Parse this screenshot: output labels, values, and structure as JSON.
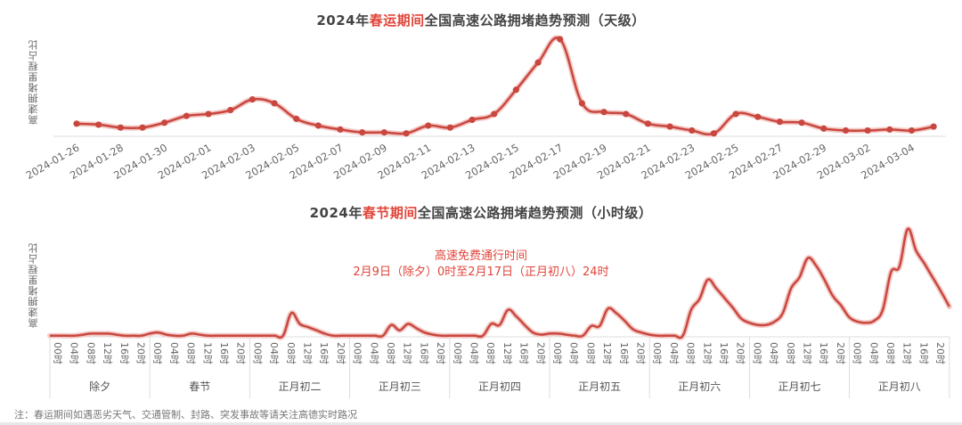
{
  "top_chart": {
    "title_prefix": "2024年",
    "title_highlight": "春运期间",
    "title_suffix": "全国高速公路拥堵趋势预测（天级）",
    "ylabel": "高速拥堵里程占比"
  },
  "bottom_chart": {
    "title_prefix": "2024年",
    "title_highlight": "春节期间",
    "title_suffix": "全国高速公路拥堵趋势预测（小时级）",
    "ylabel": "高速拥堵里程占比",
    "annotation_line1": "高速免费通行时间",
    "annotation_line2": "2月9日（除夕）0时至2月17日（正月初八）24时"
  },
  "footnote": "注：春运期间如遇恶劣天气、交通管制、封路、突发事故等请关注高德实时路况",
  "colors": {
    "line": "#c9473f",
    "highlight": "#e0453a",
    "axis": "#dddddd"
  },
  "chart_data": [
    {
      "type": "line",
      "title": "2024年春运期间全国高速公路拥堵趋势预测（天级）",
      "xlabel": "",
      "ylabel": "高速拥堵里程占比",
      "y_units": "relative index (0-100, peak=100; no y ticks shown)",
      "grid": false,
      "markers": true,
      "x": [
        "2024-01-26",
        "2024-01-27",
        "2024-01-28",
        "2024-01-29",
        "2024-01-30",
        "2024-01-31",
        "2024-02-01",
        "2024-02-02",
        "2024-02-03",
        "2024-02-04",
        "2024-02-05",
        "2024-02-06",
        "2024-02-07",
        "2024-02-08",
        "2024-02-09",
        "2024-02-10",
        "2024-02-11",
        "2024-02-12",
        "2024-02-13",
        "2024-02-14",
        "2024-02-15",
        "2024-02-16",
        "2024-02-17",
        "2024-02-18",
        "2024-02-19",
        "2024-02-20",
        "2024-02-21",
        "2024-02-22",
        "2024-02-23",
        "2024-02-24",
        "2024-02-25",
        "2024-02-26",
        "2024-02-27",
        "2024-02-28",
        "2024-02-29",
        "2024-03-01",
        "2024-03-02",
        "2024-03-03",
        "2024-03-04",
        "2024-03-05"
      ],
      "x_tick_labels": [
        "2024-01-26",
        "2024-01-28",
        "2024-01-30",
        "2024-02-01",
        "2024-02-03",
        "2024-02-05",
        "2024-02-07",
        "2024-02-09",
        "2024-02-11",
        "2024-02-13",
        "2024-02-15",
        "2024-02-17",
        "2024-02-19",
        "2024-02-21",
        "2024-02-23",
        "2024-02-25",
        "2024-02-27",
        "2024-02-29",
        "2024-03-02",
        "2024-03-04"
      ],
      "values": [
        13,
        12,
        9,
        9,
        14,
        21,
        23,
        27,
        38,
        34,
        18,
        11,
        7,
        4,
        4,
        3,
        11,
        9,
        17,
        23,
        48,
        76,
        100,
        34,
        25,
        23,
        13,
        10,
        6,
        3,
        23,
        20,
        15,
        14,
        8,
        6,
        6,
        7,
        6,
        10
      ]
    },
    {
      "type": "line",
      "title": "2024年春节期间全国高速公路拥堵趋势预测（小时级）",
      "xlabel": "",
      "ylabel": "高速拥堵里程占比",
      "y_units": "relative index (0-100, peak=100; no y ticks shown)",
      "grid": false,
      "markers": false,
      "annotation": "高速免费通行时间 2月9日（除夕）0时至2月17日（正月初八）24时",
      "days": [
        "除夕",
        "春节",
        "正月初二",
        "正月初三",
        "正月初四",
        "正月初五",
        "正月初六",
        "正月初七",
        "正月初八"
      ],
      "hour_tick_labels": [
        "00时",
        "04时",
        "08时",
        "12时",
        "16时",
        "20时"
      ],
      "sample_interval_hours": 2,
      "values": [
        1,
        1,
        1,
        1,
        2,
        3,
        3,
        3,
        2,
        1,
        1,
        1,
        3,
        4,
        2,
        1,
        1,
        3,
        2,
        1,
        1,
        1,
        1,
        1,
        1,
        1,
        1,
        1,
        1,
        22,
        12,
        9,
        6,
        3,
        1,
        1,
        1,
        1,
        1,
        1,
        1,
        11,
        6,
        12,
        8,
        4,
        2,
        1,
        1,
        1,
        1,
        1,
        1,
        12,
        11,
        25,
        19,
        11,
        4,
        2,
        3,
        3,
        2,
        1,
        1,
        10,
        10,
        26,
        22,
        15,
        7,
        4,
        2,
        1,
        1,
        1,
        1,
        25,
        35,
        53,
        45,
        36,
        27,
        17,
        13,
        11,
        11,
        14,
        22,
        45,
        55,
        73,
        66,
        53,
        38,
        29,
        18,
        14,
        13,
        15,
        25,
        60,
        65,
        100,
        80,
        68,
        55,
        42,
        28
      ]
    }
  ]
}
